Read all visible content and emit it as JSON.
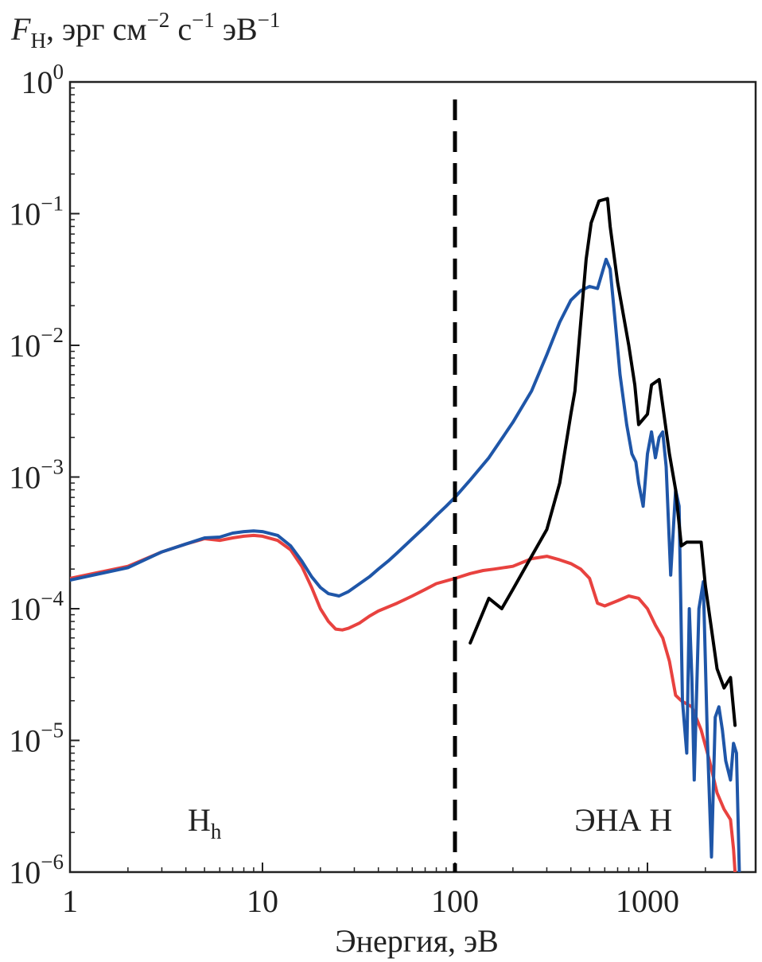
{
  "chart_data": {
    "type": "line",
    "ylabel": {
      "symbol": "F",
      "subscript": "H",
      "units_prefix": ", эрг см",
      "exp1": "−2",
      "units_mid": " с",
      "exp2": "−1",
      "units_mid2": " эВ",
      "exp3": "−1"
    },
    "xlabel": "Энергия, эВ",
    "x_scale": "log",
    "y_scale": "log",
    "xlim": [
      1,
      3500
    ],
    "ylim": [
      1e-06,
      1
    ],
    "x_ticks": [
      {
        "value": 1,
        "label": "1"
      },
      {
        "value": 10,
        "label": "10"
      },
      {
        "value": 100,
        "label": "100"
      },
      {
        "value": 1000,
        "label": "1000"
      }
    ],
    "y_ticks": [
      {
        "value": 1e-06,
        "base": "10",
        "exp": "−6"
      },
      {
        "value": 1e-05,
        "base": "10",
        "exp": "−5"
      },
      {
        "value": 0.0001,
        "base": "10",
        "exp": "−4"
      },
      {
        "value": 0.001,
        "base": "10",
        "exp": "−3"
      },
      {
        "value": 0.01,
        "base": "10",
        "exp": "−2"
      },
      {
        "value": 0.1,
        "base": "10",
        "exp": "−1"
      },
      {
        "value": 1,
        "base": "10",
        "exp": "0"
      }
    ],
    "divider": {
      "x": 100,
      "style": "dashed",
      "color": "#000000"
    },
    "annotations": [
      {
        "id": "hh",
        "text": "H",
        "sub": "h",
        "x": 5,
        "y": 2.5e-06
      },
      {
        "id": "ena",
        "text": "ЭНА H",
        "sub": "",
        "x": 750,
        "y": 2.5e-06
      }
    ],
    "series": [
      {
        "color": "#e8423f",
        "points": [
          [
            1,
            0.00017
          ],
          [
            2,
            0.00021
          ],
          [
            3,
            0.00027
          ],
          [
            4,
            0.00031
          ],
          [
            5,
            0.00034
          ],
          [
            6,
            0.00033
          ],
          [
            7,
            0.000345
          ],
          [
            8,
            0.000355
          ],
          [
            9,
            0.00036
          ],
          [
            10,
            0.000355
          ],
          [
            12,
            0.00033
          ],
          [
            14,
            0.00028
          ],
          [
            16,
            0.00021
          ],
          [
            18,
            0.000145
          ],
          [
            20,
            0.0001
          ],
          [
            22,
            8e-05
          ],
          [
            24,
            7e-05
          ],
          [
            26,
            6.9e-05
          ],
          [
            28,
            7.1e-05
          ],
          [
            32,
            7.8e-05
          ],
          [
            36,
            8.8e-05
          ],
          [
            40,
            9.6e-05
          ],
          [
            50,
            0.00011
          ],
          [
            60,
            0.000125
          ],
          [
            70,
            0.00014
          ],
          [
            80,
            0.000155
          ],
          [
            100,
            0.00017
          ],
          [
            120,
            0.000185
          ],
          [
            140,
            0.000195
          ],
          [
            160,
            0.0002
          ],
          [
            200,
            0.00021
          ],
          [
            250,
            0.00024
          ],
          [
            300,
            0.00025
          ],
          [
            350,
            0.000235
          ],
          [
            400,
            0.00022
          ],
          [
            450,
            0.0002
          ],
          [
            500,
            0.00017
          ],
          [
            550,
            0.00011
          ],
          [
            600,
            0.000105
          ],
          [
            700,
            0.000115
          ],
          [
            800,
            0.000125
          ],
          [
            900,
            0.00012
          ],
          [
            1000,
            0.0001
          ],
          [
            1100,
            7.5e-05
          ],
          [
            1200,
            6e-05
          ],
          [
            1300,
            4e-05
          ],
          [
            1400,
            2.2e-05
          ],
          [
            1500,
            2e-05
          ],
          [
            1700,
            1.8e-05
          ],
          [
            1900,
            1.2e-05
          ],
          [
            2100,
            7e-06
          ],
          [
            2300,
            4e-06
          ],
          [
            2500,
            3e-06
          ],
          [
            2700,
            2.5e-06
          ],
          [
            2800,
            1.5e-06
          ],
          [
            2850,
            1e-06
          ]
        ]
      },
      {
        "color": "#1f56a8",
        "points": [
          [
            1,
            0.000165
          ],
          [
            2,
            0.000205
          ],
          [
            3,
            0.00027
          ],
          [
            4,
            0.00031
          ],
          [
            5,
            0.000345
          ],
          [
            6,
            0.00035
          ],
          [
            7,
            0.000375
          ],
          [
            8,
            0.000385
          ],
          [
            9,
            0.00039
          ],
          [
            10,
            0.000385
          ],
          [
            12,
            0.00036
          ],
          [
            14,
            0.0003
          ],
          [
            16,
            0.00023
          ],
          [
            18,
            0.000175
          ],
          [
            20,
            0.000145
          ],
          [
            22,
            0.00013
          ],
          [
            25,
            0.000125
          ],
          [
            28,
            0.000135
          ],
          [
            32,
            0.000155
          ],
          [
            36,
            0.000175
          ],
          [
            40,
            0.0002
          ],
          [
            45,
            0.00023
          ],
          [
            50,
            0.000265
          ],
          [
            60,
            0.00034
          ],
          [
            70,
            0.00042
          ],
          [
            80,
            0.00051
          ],
          [
            90,
            0.0006
          ],
          [
            100,
            0.0007
          ],
          [
            120,
            0.00095
          ],
          [
            150,
            0.0014
          ],
          [
            200,
            0.0026
          ],
          [
            250,
            0.0045
          ],
          [
            300,
            0.0085
          ],
          [
            350,
            0.015
          ],
          [
            400,
            0.022
          ],
          [
            450,
            0.026
          ],
          [
            500,
            0.028
          ],
          [
            550,
            0.027
          ],
          [
            580,
            0.035
          ],
          [
            610,
            0.045
          ],
          [
            640,
            0.038
          ],
          [
            680,
            0.015
          ],
          [
            720,
            0.006
          ],
          [
            780,
            0.0025
          ],
          [
            830,
            0.0015
          ],
          [
            870,
            0.0013
          ],
          [
            900,
            0.0009
          ],
          [
            950,
            0.0006
          ],
          [
            1000,
            0.0015
          ],
          [
            1050,
            0.0022
          ],
          [
            1100,
            0.0014
          ],
          [
            1150,
            0.002
          ],
          [
            1200,
            0.0022
          ],
          [
            1250,
            0.0012
          ],
          [
            1320,
            0.00018
          ],
          [
            1400,
            0.0008
          ],
          [
            1460,
            0.0006
          ],
          [
            1520,
            2e-05
          ],
          [
            1600,
            8e-06
          ],
          [
            1650,
            0.0001
          ],
          [
            1700,
            3e-05
          ],
          [
            1750,
            5e-06
          ],
          [
            1850,
            0.0001
          ],
          [
            1950,
            0.00016
          ],
          [
            2050,
            1e-05
          ],
          [
            2150,
            1.3e-06
          ],
          [
            2250,
            1.5e-05
          ],
          [
            2350,
            1.8e-05
          ],
          [
            2450,
            1.2e-05
          ],
          [
            2550,
            7e-06
          ],
          [
            2700,
            5e-06
          ],
          [
            2800,
            9.5e-06
          ],
          [
            2900,
            8e-06
          ],
          [
            3000,
            1e-06
          ]
        ]
      },
      {
        "color": "#000000",
        "points": [
          [
            120,
            5.5e-05
          ],
          [
            150,
            0.00012
          ],
          [
            175,
            0.0001
          ],
          [
            200,
            0.00014
          ],
          [
            250,
            0.00025
          ],
          [
            300,
            0.0004
          ],
          [
            350,
            0.0009
          ],
          [
            400,
            0.003
          ],
          [
            420,
            0.0045
          ],
          [
            450,
            0.015
          ],
          [
            480,
            0.045
          ],
          [
            510,
            0.085
          ],
          [
            560,
            0.125
          ],
          [
            620,
            0.13
          ],
          [
            640,
            0.08
          ],
          [
            700,
            0.03
          ],
          [
            800,
            0.01
          ],
          [
            860,
            0.005
          ],
          [
            900,
            0.0025
          ],
          [
            1000,
            0.003
          ],
          [
            1050,
            0.005
          ],
          [
            1150,
            0.0055
          ],
          [
            1200,
            0.0035
          ],
          [
            1300,
            0.0015
          ],
          [
            1400,
            0.0008
          ],
          [
            1500,
            0.0003
          ],
          [
            1600,
            0.00032
          ],
          [
            1900,
            0.00032
          ],
          [
            2000,
            0.00015
          ],
          [
            2150,
            7e-05
          ],
          [
            2300,
            3.5e-05
          ],
          [
            2500,
            2.5e-05
          ],
          [
            2700,
            3e-05
          ],
          [
            2850,
            1.3e-05
          ]
        ]
      }
    ]
  }
}
